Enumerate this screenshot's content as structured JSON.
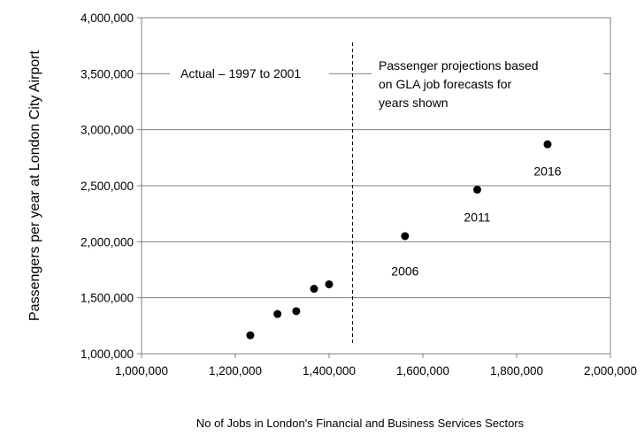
{
  "chart_data": {
    "type": "scatter",
    "xlabel": "No of Jobs in London's Financial and Business Services Sectors",
    "ylabel": "Passengers  per year at London City Airport",
    "xlim": [
      1000000,
      2000000
    ],
    "ylim": [
      1000000,
      4000000
    ],
    "x_ticks": [
      1000000,
      1200000,
      1400000,
      1600000,
      1800000,
      2000000
    ],
    "x_tick_labels": [
      "1,000,000",
      "1,200,000",
      "1,400,000",
      "1,600,000",
      "1,800,000",
      "2,000,000"
    ],
    "y_ticks": [
      1000000,
      1500000,
      2000000,
      2500000,
      3000000,
      3500000,
      4000000
    ],
    "y_tick_labels": [
      "1,000,000",
      "1,500,000",
      "2,000,000",
      "2,500,000",
      "3,000,000",
      "3,500,000",
      "4,000,000"
    ],
    "grid": "horizontal",
    "points": [
      {
        "x": 1232000,
        "y": 1165000
      },
      {
        "x": 1290000,
        "y": 1355000
      },
      {
        "x": 1330000,
        "y": 1380000
      },
      {
        "x": 1368000,
        "y": 1580000
      },
      {
        "x": 1400000,
        "y": 1620000
      },
      {
        "x": 1562000,
        "y": 2050000
      },
      {
        "x": 1716000,
        "y": 2465000
      },
      {
        "x": 1866000,
        "y": 2870000
      }
    ],
    "point_labels": [
      {
        "text": "2006",
        "x": 1562000,
        "y": 1700000
      },
      {
        "text": "2011",
        "x": 1716000,
        "y": 2180000
      },
      {
        "text": "2016",
        "x": 1866000,
        "y": 2590000
      }
    ],
    "divider_x": 1450000,
    "annotations": {
      "left": "Actual – 1997 to 2001",
      "right": [
        "Passenger projections based",
        "on GLA job forecasts for",
        "years shown"
      ]
    }
  }
}
